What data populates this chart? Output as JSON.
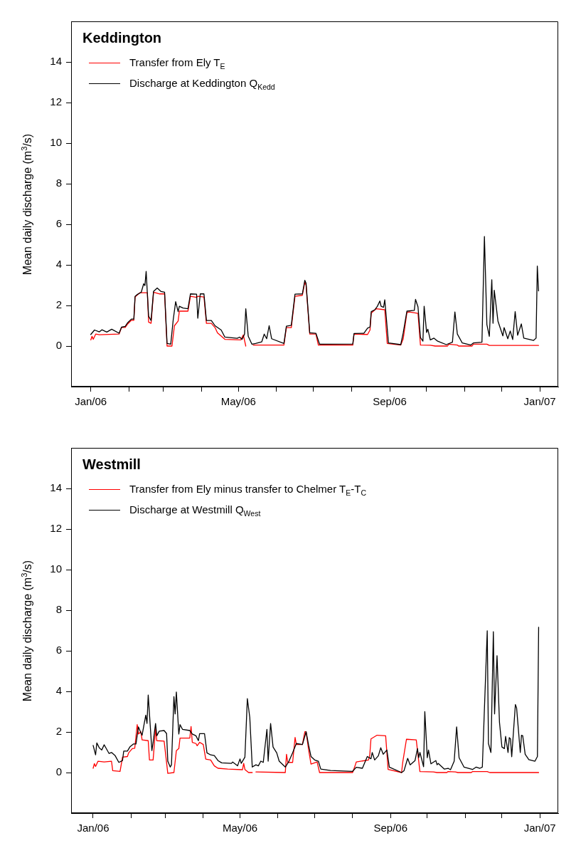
{
  "chart_data": [
    {
      "type": "line",
      "title": "Keddington",
      "ylabel": "Mean daily discharge (m$^{3}$/s)",
      "legend": "top left",
      "grid": false,
      "xlim": [
        "2005-12-16",
        "2007-01-16"
      ],
      "ylim": [
        -2,
        16
      ],
      "yticks": [
        0,
        2,
        4,
        6,
        8,
        10,
        12,
        14
      ],
      "xticks": [
        {
          "value": "2006-01-01",
          "label": "Jan/06"
        },
        {
          "value": "2006-02-01",
          "label": null
        },
        {
          "value": "2006-03-01",
          "label": null
        },
        {
          "value": "2006-04-01",
          "label": null
        },
        {
          "value": "2006-05-01",
          "label": "May/06"
        },
        {
          "value": "2006-06-01",
          "label": null
        },
        {
          "value": "2006-07-01",
          "label": null
        },
        {
          "value": "2006-08-01",
          "label": null
        },
        {
          "value": "2006-09-01",
          "label": "Sep/06"
        },
        {
          "value": "2006-10-01",
          "label": null
        },
        {
          "value": "2006-11-01",
          "label": null
        },
        {
          "value": "2006-12-01",
          "label": null
        },
        {
          "value": "2007-01-01",
          "label": "Jan/07"
        }
      ],
      "series": [
        {
          "name": "Transfer from Ely T$_{E}$",
          "color": "#ff0000",
          "x": [
            "2006-01-01",
            "2006-01-02",
            "2006-01-03",
            "2006-01-05",
            "2006-01-08",
            "2006-01-24",
            "2006-01-26",
            "2006-01-29",
            "2006-01-31",
            "2006-02-03",
            "2006-02-05",
            "2006-02-06",
            "2006-02-10",
            "2006-02-16",
            "2006-02-17",
            "2006-02-19",
            "2006-02-21",
            "2006-02-26",
            "2006-03-02",
            "2006-03-04",
            "2006-03-08",
            "2006-03-10",
            "2006-03-13",
            "2006-03-14",
            "2006-03-21",
            "2006-03-23",
            "2006-03-28",
            "2006-03-29",
            "2006-04-03",
            "2006-04-05",
            "2006-04-09",
            "2006-04-12",
            "2006-04-14",
            "2006-04-20",
            "2006-05-03",
            "2006-05-05",
            "2006-05-07",
            "2006-05-10",
            "2006-05-13",
            "2006-06-07",
            "2006-06-09",
            "2006-06-13",
            "2006-06-16",
            "2006-06-22",
            "2006-06-24",
            "2006-06-25",
            "2006-06-28",
            "2006-07-03",
            "2006-07-05",
            "2006-08-02",
            "2006-08-03",
            "2006-08-14",
            "2006-08-16",
            "2006-08-17",
            "2006-08-21",
            "2006-08-28",
            "2006-08-30",
            "2006-09-10",
            "2006-09-12",
            "2006-09-15",
            "2006-09-17",
            "2006-09-24",
            "2006-09-26",
            "2006-10-04",
            "2006-10-08",
            "2006-10-18",
            "2006-10-19",
            "2006-10-26",
            "2006-10-27",
            "2006-11-07",
            "2006-11-08",
            "2006-11-19",
            "2006-11-21",
            "2006-12-31"
          ],
          "values": [
            0.3,
            0.48,
            0.33,
            0.59,
            0.56,
            0.59,
            0.92,
            0.92,
            1.09,
            1.27,
            1.27,
            2.42,
            2.63,
            2.63,
            1.18,
            1.12,
            2.65,
            2.57,
            2.57,
            0.0,
            0.0,
            1.0,
            1.23,
            1.72,
            1.72,
            2.45,
            2.4,
            2.45,
            2.42,
            1.12,
            1.12,
            0.91,
            0.65,
            0.33,
            0.3,
            0.55,
            0.0,
            null,
            0.05,
            0.05,
            0.91,
            0.91,
            2.45,
            2.5,
            3.15,
            3.0,
            0.59,
            0.59,
            0.05,
            0.05,
            0.59,
            0.57,
            0.79,
            1.62,
            1.84,
            1.79,
            0.13,
            0.05,
            0.36,
            1.65,
            1.68,
            1.61,
            0.05,
            0.04,
            0.0,
            0.0,
            0.09,
            0.05,
            0.0,
            0.0,
            0.09,
            0.09,
            0.03,
            0.03
          ]
        },
        {
          "name": "Discharge at Keddington Q$_{Kedd}$",
          "color": "#000000",
          "x": [
            "2006-01-01",
            "2006-01-04",
            "2006-01-08",
            "2006-01-10",
            "2006-01-14",
            "2006-01-18",
            "2006-01-24",
            "2006-01-26",
            "2006-01-29",
            "2006-01-31",
            "2006-02-03",
            "2006-02-05",
            "2006-02-06",
            "2006-02-08",
            "2006-02-11",
            "2006-02-13",
            "2006-02-14",
            "2006-02-15",
            "2006-02-17",
            "2006-02-19",
            "2006-02-21",
            "2006-02-24",
            "2006-02-27",
            "2006-03-02",
            "2006-03-04",
            "2006-03-07",
            "2006-03-09",
            "2006-03-11",
            "2006-03-13",
            "2006-03-14",
            "2006-03-17",
            "2006-03-21",
            "2006-03-23",
            "2006-03-28",
            "2006-03-29",
            "2006-03-31",
            "2006-04-03",
            "2006-04-05",
            "2006-04-09",
            "2006-04-12",
            "2006-04-17",
            "2006-04-20",
            "2006-04-30",
            "2006-05-02",
            "2006-05-04",
            "2006-05-06",
            "2006-05-07",
            "2006-05-09",
            "2006-05-12",
            "2006-05-15",
            "2006-05-20",
            "2006-05-22",
            "2006-05-24",
            "2006-05-26",
            "2006-05-28",
            "2006-06-07",
            "2006-06-09",
            "2006-06-13",
            "2006-06-16",
            "2006-06-22",
            "2006-06-24",
            "2006-06-25",
            "2006-06-28",
            "2006-07-03",
            "2006-07-06",
            "2006-08-02",
            "2006-08-03",
            "2006-08-11",
            "2006-08-14",
            "2006-08-16",
            "2006-08-17",
            "2006-08-20",
            "2006-08-22",
            "2006-08-24",
            "2006-08-25",
            "2006-08-27",
            "2006-08-28",
            "2006-08-31",
            "2006-09-10",
            "2006-09-12",
            "2006-09-15",
            "2006-09-21",
            "2006-09-22",
            "2006-09-24",
            "2006-09-26",
            "2006-09-28",
            "2006-09-29",
            "2006-10-01",
            "2006-10-02",
            "2006-10-04",
            "2006-10-07",
            "2006-10-10",
            "2006-10-17",
            "2006-10-22",
            "2006-10-24",
            "2006-10-26",
            "2006-10-30",
            "2006-11-06",
            "2006-11-08",
            "2006-11-15",
            "2006-11-17",
            "2006-11-19",
            "2006-11-21",
            "2006-11-23",
            "2006-11-24",
            "2006-11-25",
            "2006-11-28",
            "2006-12-02",
            "2006-12-03",
            "2006-12-06",
            "2006-12-08",
            "2006-12-10",
            "2006-12-12",
            "2006-12-14",
            "2006-12-17",
            "2006-12-19",
            "2006-12-27",
            "2006-12-29",
            "2006-12-30",
            "2006-12-31"
          ],
          "values": [
            0.57,
            0.79,
            0.7,
            0.8,
            0.69,
            0.83,
            0.63,
            0.93,
            0.97,
            1.15,
            1.33,
            1.33,
            2.45,
            2.55,
            2.65,
            3.07,
            2.98,
            3.68,
            1.47,
            1.26,
            2.69,
            2.86,
            2.69,
            2.65,
            0.13,
            0.09,
            1.29,
            2.19,
            1.7,
            1.96,
            1.87,
            1.84,
            2.57,
            2.56,
            1.37,
            2.57,
            2.57,
            1.26,
            1.26,
            1.0,
            0.79,
            0.44,
            0.38,
            0.44,
            0.33,
            0.59,
            1.84,
            0.48,
            0.09,
            0.13,
            0.21,
            0.59,
            0.36,
            1.0,
            0.36,
            0.13,
            0.98,
            1.02,
            2.56,
            2.57,
            3.24,
            3.1,
            0.65,
            0.63,
            0.09,
            0.1,
            0.62,
            0.63,
            0.88,
            0.94,
            1.7,
            1.79,
            1.96,
            2.22,
            1.96,
            1.91,
            2.28,
            0.15,
            0.07,
            0.65,
            1.72,
            1.76,
            2.3,
            1.93,
            0.42,
            0.24,
            1.96,
            0.67,
            0.83,
            0.3,
            0.39,
            0.24,
            0.07,
            0.19,
            1.68,
            0.59,
            0.15,
            0.05,
            0.15,
            0.19,
            5.4,
            1.06,
            0.48,
            3.27,
            1.12,
            2.75,
            1.23,
            0.5,
            0.91,
            0.36,
            0.74,
            0.32,
            1.7,
            0.53,
            1.09,
            0.39,
            0.28,
            0.39,
            3.94,
            2.72
          ]
        }
      ]
    },
    {
      "type": "line",
      "title": "Westmill",
      "ylabel": "Mean daily discharge (m$^{3}$/s)",
      "legend": "top left",
      "grid": false,
      "xlim": [
        "2005-12-14",
        "2007-01-16"
      ],
      "ylim": [
        -2,
        16
      ],
      "yticks": [
        0,
        2,
        4,
        6,
        8,
        10,
        12,
        14
      ],
      "xticks": [
        {
          "value": "2006-01-01",
          "label": "Jan/06"
        },
        {
          "value": "2006-02-01",
          "label": null
        },
        {
          "value": "2006-03-01",
          "label": null
        },
        {
          "value": "2006-04-01",
          "label": null
        },
        {
          "value": "2006-05-01",
          "label": "May/06"
        },
        {
          "value": "2006-06-01",
          "label": null
        },
        {
          "value": "2006-07-01",
          "label": null
        },
        {
          "value": "2006-08-01",
          "label": null
        },
        {
          "value": "2006-09-01",
          "label": "Sep/06"
        },
        {
          "value": "2006-10-01",
          "label": null
        },
        {
          "value": "2006-11-01",
          "label": null
        },
        {
          "value": "2006-12-01",
          "label": null
        },
        {
          "value": "2007-01-01",
          "label": "Jan/07"
        }
      ],
      "series": [
        {
          "name": "Transfer from Ely minus transfer to Chelmer T$_{E}$-T$_{C}$",
          "color": "#ff0000",
          "x": [
            "2006-01-01",
            "2006-01-02",
            "2006-01-03",
            "2006-01-05",
            "2006-01-10",
            "2006-01-16",
            "2006-01-17",
            "2006-01-23",
            "2006-01-25",
            "2006-01-29",
            "2006-01-30",
            "2006-02-02",
            "2006-02-04",
            "2006-02-06",
            "2006-02-07",
            "2006-02-09",
            "2006-02-10",
            "2006-02-15",
            "2006-02-16",
            "2006-02-19",
            "2006-02-21",
            "2006-02-22",
            "2006-02-28",
            "2006-03-03",
            "2006-03-08",
            "2006-03-10",
            "2006-03-12",
            "2006-03-13",
            "2006-03-21",
            "2006-03-22",
            "2006-03-23",
            "2006-03-26",
            "2006-03-27",
            "2006-03-29",
            "2006-04-01",
            "2006-04-03",
            "2006-04-07",
            "2006-04-10",
            "2006-04-13",
            "2006-04-21",
            "2006-05-03",
            "2006-05-04",
            "2006-05-05",
            "2006-05-08",
            "2006-05-11",
            "2006-05-12",
            "2006-05-14",
            "2006-06-07",
            "2006-06-08",
            "2006-06-09",
            "2006-06-13",
            "2006-06-15",
            "2006-06-16",
            "2006-06-21",
            "2006-06-23",
            "2006-06-24",
            "2006-06-26",
            "2006-06-28",
            "2006-07-03",
            "2006-07-05",
            "2006-08-01",
            "2006-08-03",
            "2006-08-04",
            "2006-08-14",
            "2006-08-15",
            "2006-08-16",
            "2006-08-21",
            "2006-08-28",
            "2006-08-30",
            "2006-09-10",
            "2006-09-11",
            "2006-09-14",
            "2006-09-22",
            "2006-09-25",
            "2006-10-06",
            "2006-10-09",
            "2006-10-17",
            "2006-10-18",
            "2006-10-24",
            "2006-10-26",
            "2006-11-06",
            "2006-11-07",
            "2006-11-19",
            "2006-11-21",
            "2006-12-31"
          ],
          "values": [
            0.21,
            0.44,
            0.3,
            0.56,
            0.52,
            0.56,
            0.09,
            0.06,
            0.76,
            0.79,
            0.97,
            1.18,
            1.2,
            2.36,
            1.9,
            2.01,
            1.61,
            1.57,
            0.62,
            0.62,
            2.15,
            1.57,
            1.55,
            -0.04,
            0.0,
            1.08,
            1.18,
            1.7,
            1.7,
            2.27,
            1.49,
            1.43,
            1.32,
            1.49,
            1.38,
            0.66,
            0.62,
            0.33,
            0.21,
            0.17,
            0.14,
            0.45,
            0.15,
            0.0,
            0.0,
            null,
            0.03,
            0.0,
            0.9,
            0.5,
            0.5,
            1.73,
            1.38,
            1.38,
            2.01,
            2.01,
            1.14,
            0.42,
            0.52,
            0.0,
            0.0,
            0.33,
            0.52,
            0.62,
            0.85,
            1.66,
            1.84,
            1.81,
            0.15,
            0.0,
            0.52,
            1.64,
            1.61,
            0.05,
            0.03,
            0.0,
            0.0,
            0.05,
            0.03,
            0.0,
            0.0,
            0.05,
            0.05,
            0.0,
            0.0
          ]
        },
        {
          "name": "Discharge at Westmill Q$_{West}$",
          "color": "#000000",
          "x": [
            "2006-01-01",
            "2006-01-03",
            "2006-01-04",
            "2006-01-06",
            "2006-01-08",
            "2006-01-10",
            "2006-01-14",
            "2006-01-16",
            "2006-01-19",
            "2006-01-22",
            "2006-01-25",
            "2006-01-26",
            "2006-01-29",
            "2006-01-31",
            "2006-02-03",
            "2006-02-05",
            "2006-02-07",
            "2006-02-09",
            "2006-02-10",
            "2006-02-13",
            "2006-02-14",
            "2006-02-15",
            "2006-02-18",
            "2006-02-19",
            "2006-02-21",
            "2006-02-22",
            "2006-02-24",
            "2006-02-28",
            "2006-03-02",
            "2006-03-03",
            "2006-03-05",
            "2006-03-06",
            "2006-03-08",
            "2006-03-09",
            "2006-03-10",
            "2006-03-12",
            "2006-03-13",
            "2006-03-15",
            "2006-03-21",
            "2006-03-23",
            "2006-03-26",
            "2006-03-28",
            "2006-03-29",
            "2006-04-02",
            "2006-04-04",
            "2006-04-07",
            "2006-04-10",
            "2006-04-13",
            "2006-04-16",
            "2006-04-24",
            "2006-04-25",
            "2006-04-29",
            "2006-05-01",
            "2006-05-02",
            "2006-05-05",
            "2006-05-07",
            "2006-05-09",
            "2006-05-11",
            "2006-05-14",
            "2006-05-16",
            "2006-05-18",
            "2006-05-20",
            "2006-05-23",
            "2006-05-24",
            "2006-05-26",
            "2006-05-28",
            "2006-05-31",
            "2006-06-02",
            "2006-06-07",
            "2006-06-10",
            "2006-06-13",
            "2006-06-16",
            "2006-06-21",
            "2006-06-24",
            "2006-06-26",
            "2006-06-28",
            "2006-07-01",
            "2006-07-04",
            "2006-07-06",
            "2006-07-14",
            "2006-08-01",
            "2006-08-04",
            "2006-08-09",
            "2006-08-13",
            "2006-08-16",
            "2006-08-17",
            "2006-08-19",
            "2006-08-22",
            "2006-08-24",
            "2006-08-26",
            "2006-08-29",
            "2006-08-31",
            "2006-09-10",
            "2006-09-12",
            "2006-09-15",
            "2006-09-17",
            "2006-09-21",
            "2006-09-23",
            "2006-09-24",
            "2006-09-25",
            "2006-09-28",
            "2006-09-29",
            "2006-10-01",
            "2006-10-02",
            "2006-10-04",
            "2006-10-08",
            "2006-10-09",
            "2006-10-10",
            "2006-10-15",
            "2006-10-18",
            "2006-10-20",
            "2006-10-23",
            "2006-10-25",
            "2006-10-27",
            "2006-10-31",
            "2006-11-07",
            "2006-11-10",
            "2006-11-13",
            "2006-11-15",
            "2006-11-19",
            "2006-11-20",
            "2006-11-22",
            "2006-11-24",
            "2006-11-25",
            "2006-11-27",
            "2006-11-29",
            "2006-12-01",
            "2006-12-03",
            "2006-12-04",
            "2006-12-06",
            "2006-12-07",
            "2006-12-08",
            "2006-12-09",
            "2006-12-12",
            "2006-12-13",
            "2006-12-16",
            "2006-12-17",
            "2006-12-18",
            "2006-12-20",
            "2006-12-23",
            "2006-12-28",
            "2006-12-30",
            "2006-12-31"
          ],
          "values": [
            1.34,
            0.87,
            1.46,
            1.22,
            1.11,
            1.37,
            0.94,
            0.99,
            0.83,
            0.5,
            0.59,
            1.06,
            1.06,
            1.26,
            1.41,
            1.41,
            2.25,
            1.96,
            1.84,
            2.83,
            2.42,
            3.82,
            1.08,
            1.49,
            2.42,
            1.81,
            2.04,
            2.07,
            1.92,
            0.56,
            0.27,
            0.38,
            3.74,
            2.89,
            3.97,
            1.9,
            2.36,
            2.13,
            2.07,
            1.9,
            1.81,
            1.57,
            1.92,
            1.92,
            0.97,
            0.87,
            0.84,
            0.59,
            0.48,
            0.45,
            0.52,
            0.33,
            0.67,
            0.45,
            0.76,
            3.64,
            2.71,
            0.27,
            0.38,
            0.33,
            0.56,
            0.5,
            2.13,
            0.56,
            2.42,
            1.26,
            0.97,
            0.56,
            0.27,
            0.56,
            0.97,
            1.43,
            1.38,
            2.01,
            1.36,
            0.79,
            0.62,
            0.56,
            0.17,
            0.1,
            0.06,
            0.26,
            0.21,
            0.79,
            0.68,
            0.99,
            0.62,
            0.82,
            1.22,
            0.9,
            1.11,
            0.27,
            0.0,
            0.09,
            0.7,
            0.38,
            0.59,
            1.18,
            0.73,
            0.99,
            0.29,
            3.0,
            0.73,
            1.11,
            0.43,
            0.59,
            0.38,
            0.45,
            0.17,
            0.21,
            0.14,
            0.56,
            2.25,
            0.73,
            0.27,
            0.15,
            0.27,
            0.21,
            0.27,
            6.99,
            1.43,
            0.99,
            6.94,
            2.89,
            5.76,
            2.48,
            1.26,
            1.18,
            1.78,
            0.99,
            1.72,
            1.66,
            0.78,
            3.35,
            3.18,
            0.99,
            1.84,
            1.81,
            0.9,
            0.64,
            0.56,
            0.79,
            7.16
          ]
        }
      ]
    }
  ]
}
